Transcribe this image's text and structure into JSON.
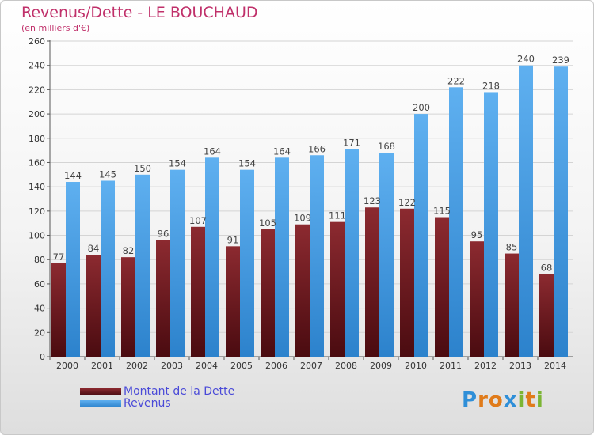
{
  "header": {
    "title": "Revenus/Dette - LE BOUCHAUD",
    "subtitle": "(en milliers d'€)"
  },
  "legend": {
    "items": [
      {
        "label": "Montant de la Dette",
        "color": "#6b1a1f"
      },
      {
        "label": "Revenus",
        "color": "#4aa0e6"
      }
    ]
  },
  "logo": {
    "text": "Proxiti",
    "letters": [
      {
        "ch": "P",
        "color": "#2f8fd8"
      },
      {
        "ch": "r",
        "color": "#e07b1a"
      },
      {
        "ch": "o",
        "color": "#e07b1a"
      },
      {
        "ch": "x",
        "color": "#2f8fd8"
      },
      {
        "ch": "i",
        "color": "#7cb534"
      },
      {
        "ch": "t",
        "color": "#e07b1a"
      },
      {
        "ch": "i",
        "color": "#7cb534"
      }
    ]
  },
  "chart_data": {
    "type": "bar",
    "title": "Revenus/Dette - LE BOUCHAUD",
    "ylabel": "(en milliers d'€)",
    "xlabel": "",
    "ylim": [
      0,
      260
    ],
    "yticks": [
      0,
      20,
      40,
      60,
      80,
      100,
      120,
      140,
      160,
      180,
      200,
      220,
      240,
      260
    ],
    "grid": true,
    "legend_position": "bottom-left",
    "categories": [
      "2000",
      "2001",
      "2002",
      "2003",
      "2004",
      "2005",
      "2006",
      "2007",
      "2008",
      "2009",
      "2010",
      "2011",
      "2012",
      "2013",
      "2014"
    ],
    "series": [
      {
        "name": "Montant de la Dette",
        "color": "#6b1a1f",
        "values": [
          77,
          84,
          82,
          96,
          107,
          91,
          105,
          109,
          111,
          123,
          122,
          115,
          95,
          85,
          68
        ]
      },
      {
        "name": "Revenus",
        "color": "#4aa0e6",
        "values": [
          144,
          145,
          150,
          154,
          164,
          154,
          164,
          166,
          171,
          168,
          200,
          222,
          218,
          240,
          239
        ]
      }
    ]
  }
}
